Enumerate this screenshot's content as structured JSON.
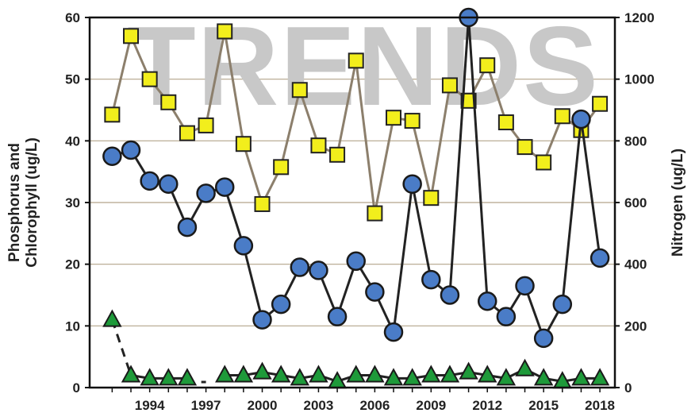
{
  "watermark": "TRENDS",
  "chart_data": {
    "type": "line",
    "x_tick_labels": [
      "1994",
      "1997",
      "2000",
      "2003",
      "2006",
      "2009",
      "2012",
      "2015",
      "2018"
    ],
    "x": [
      1992,
      1993,
      1994,
      1995,
      1996,
      1997,
      1998,
      1999,
      2000,
      2001,
      2002,
      2003,
      2004,
      2005,
      2006,
      2007,
      2008,
      2009,
      2010,
      2011,
      2012,
      2013,
      2014,
      2015,
      2016,
      2017,
      2018
    ],
    "xlim": [
      1990.8,
      2018.8
    ],
    "y_left": {
      "label": "Phosphorus and Chlorophyll (ug/L)",
      "ticks": [
        "0",
        "10",
        "20",
        "30",
        "40",
        "50",
        "60"
      ],
      "lim": [
        0,
        60
      ]
    },
    "y_right": {
      "label": "Nitrogen (ug/L)",
      "ticks": [
        "0",
        "200",
        "400",
        "600",
        "800",
        "1000",
        "1200"
      ],
      "lim": [
        0,
        1200
      ]
    },
    "grid": true,
    "series": [
      {
        "marker": "square",
        "axis": "right",
        "color": "#f2ee1c",
        "line_color": "#8c7f6c",
        "values": [
          885,
          1140,
          1000,
          925,
          825,
          850,
          1155,
          790,
          595,
          715,
          965,
          785,
          755,
          1060,
          565,
          875,
          865,
          615,
          980,
          930,
          1045,
          860,
          780,
          730,
          880,
          835,
          920
        ]
      },
      {
        "marker": "circle",
        "axis": "left",
        "color": "#4a7cc7",
        "line_color": "#222222",
        "values": [
          37.5,
          38.5,
          33.5,
          33,
          26,
          31.5,
          32.5,
          23,
          11,
          13.5,
          19.5,
          19,
          11.5,
          20.5,
          15.5,
          9,
          33,
          17.5,
          15,
          60,
          14,
          11.5,
          16.5,
          8,
          13.5,
          43.5,
          21
        ]
      },
      {
        "marker": "triangle",
        "axis": "left",
        "color": "#1e9a3a",
        "line_color": "#222222",
        "values": [
          11,
          2,
          1.5,
          1.5,
          1.5,
          null,
          2,
          2,
          2.5,
          2,
          1.5,
          2,
          1,
          2,
          2,
          1.5,
          1.5,
          2,
          2,
          2.5,
          2,
          1.5,
          3,
          1.5,
          1,
          1.5,
          1.5
        ],
        "dashed_segments": [
          [
            0,
            1
          ]
        ]
      }
    ]
  }
}
